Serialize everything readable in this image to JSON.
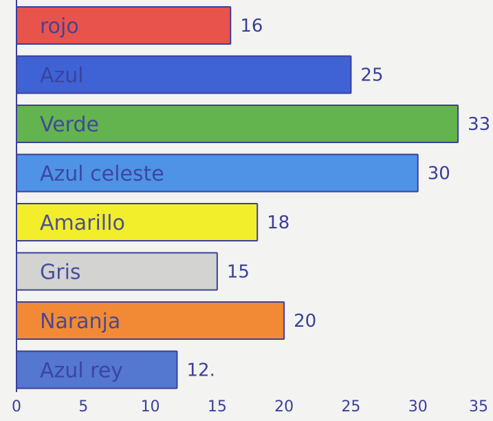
{
  "chart_data": {
    "type": "bar",
    "orientation": "horizontal",
    "categories": [
      "rojo",
      "Azul",
      "Verde",
      "Azul celeste",
      "Amarillo",
      "Gris",
      "Naranja",
      "Azul rey"
    ],
    "values": [
      16,
      25,
      33,
      30,
      18,
      15,
      20,
      12
    ],
    "value_labels": [
      "16",
      "25",
      "33",
      "30",
      "18",
      "15",
      "20",
      "12."
    ],
    "colors": [
      "#e8544c",
      "#3f63d4",
      "#63b34f",
      "#4f93e6",
      "#f2ee2c",
      "#d3d3d1",
      "#f28a35",
      "#5477d0"
    ],
    "x_ticks": [
      "0",
      "5",
      "10",
      "15",
      "20",
      "25",
      "30",
      "35"
    ],
    "xlim": [
      0,
      35
    ],
    "grid": false,
    "legend": "none"
  }
}
